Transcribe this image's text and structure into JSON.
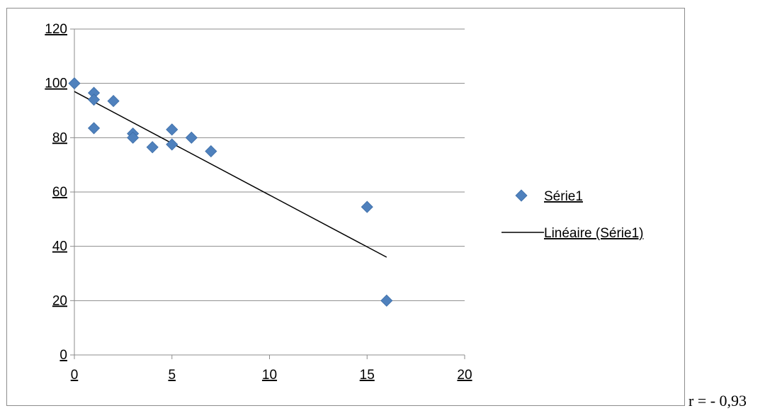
{
  "chart_data": {
    "type": "scatter",
    "title": "",
    "xlabel": "",
    "ylabel": "",
    "xlim": [
      0,
      20
    ],
    "ylim": [
      0,
      120
    ],
    "x_ticks": [
      "0",
      "5",
      "10",
      "15",
      "20"
    ],
    "y_ticks": [
      "0",
      "20",
      "40",
      "60",
      "80",
      "100",
      "120"
    ],
    "grid": "horizontal",
    "legend_position": "right",
    "marker_color": "#4f81bd",
    "series": [
      {
        "name": "Série1",
        "points": [
          {
            "x": 0,
            "y": 100
          },
          {
            "x": 1,
            "y": 96.5
          },
          {
            "x": 1,
            "y": 94
          },
          {
            "x": 1,
            "y": 83.5
          },
          {
            "x": 2,
            "y": 93.5
          },
          {
            "x": 3,
            "y": 81.5
          },
          {
            "x": 3,
            "y": 80
          },
          {
            "x": 4,
            "y": 76.5
          },
          {
            "x": 5,
            "y": 83
          },
          {
            "x": 5,
            "y": 77.5
          },
          {
            "x": 6,
            "y": 80
          },
          {
            "x": 7,
            "y": 75
          },
          {
            "x": 15,
            "y": 54.5
          },
          {
            "x": 16,
            "y": 20
          }
        ]
      }
    ],
    "trendline": {
      "name": "Linéaire (Série1)",
      "type": "linear",
      "color": "#000000",
      "start": {
        "x": 0,
        "y": 97
      },
      "end": {
        "x": 16,
        "y": 36
      }
    }
  },
  "annotation": {
    "text": "r = - 0,93"
  }
}
